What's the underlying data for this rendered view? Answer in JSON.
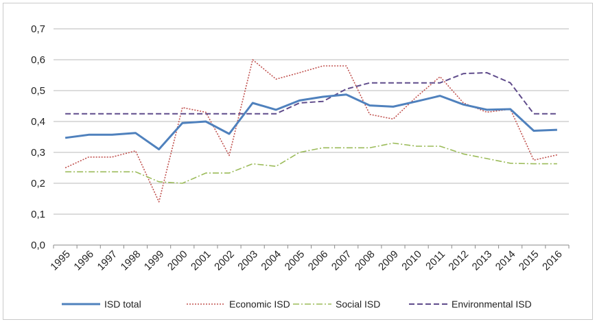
{
  "chart_data": {
    "type": "line",
    "title": "",
    "xlabel": "",
    "ylabel": "",
    "ylim": [
      0,
      0.7
    ],
    "yticks": [
      0,
      0.1,
      0.2,
      0.3,
      0.4,
      0.5,
      0.6,
      0.7
    ],
    "ytick_labels": [
      "0,0",
      "0,1",
      "0,2",
      "0,3",
      "0,4",
      "0,5",
      "0,6",
      "0,7"
    ],
    "grid": "horizontal",
    "legend_position": "bottom",
    "categories": [
      "1995",
      "1996",
      "1997",
      "1998",
      "1999",
      "2000",
      "2001",
      "2002",
      "2003",
      "2004",
      "2005",
      "2006",
      "2007",
      "2008",
      "2009",
      "2010",
      "2011",
      "2012",
      "2013",
      "2014",
      "2015",
      "2016"
    ],
    "series": [
      {
        "name": "ISD total",
        "color": "#4f81bd",
        "style": "solid",
        "values": [
          0.347,
          0.357,
          0.357,
          0.363,
          0.31,
          0.395,
          0.4,
          0.36,
          0.46,
          0.438,
          0.468,
          0.48,
          0.487,
          0.452,
          0.448,
          0.465,
          0.483,
          0.455,
          0.438,
          0.44,
          0.37,
          0.373
        ]
      },
      {
        "name": "Economic ISD",
        "color": "#c0504d",
        "style": "dotted",
        "values": [
          0.25,
          0.285,
          0.285,
          0.305,
          0.14,
          0.445,
          0.43,
          0.29,
          0.6,
          0.537,
          0.558,
          0.58,
          0.58,
          0.423,
          0.408,
          0.48,
          0.545,
          0.46,
          0.43,
          0.44,
          0.275,
          0.292
        ]
      },
      {
        "name": "Social ISD",
        "color": "#9bbb59",
        "style": "dashdot",
        "values": [
          0.237,
          0.237,
          0.237,
          0.237,
          0.205,
          0.2,
          0.233,
          0.233,
          0.263,
          0.255,
          0.3,
          0.315,
          0.315,
          0.315,
          0.33,
          0.32,
          0.32,
          0.295,
          0.28,
          0.265,
          0.263,
          0.263
        ]
      },
      {
        "name": "Environmental ISD",
        "color": "#5f4b8b",
        "style": "dashed",
        "values": [
          0.425,
          0.425,
          0.425,
          0.425,
          0.425,
          0.425,
          0.425,
          0.425,
          0.425,
          0.425,
          0.46,
          0.465,
          0.505,
          0.525,
          0.525,
          0.525,
          0.525,
          0.555,
          0.558,
          0.525,
          0.425,
          0.425
        ]
      }
    ]
  }
}
